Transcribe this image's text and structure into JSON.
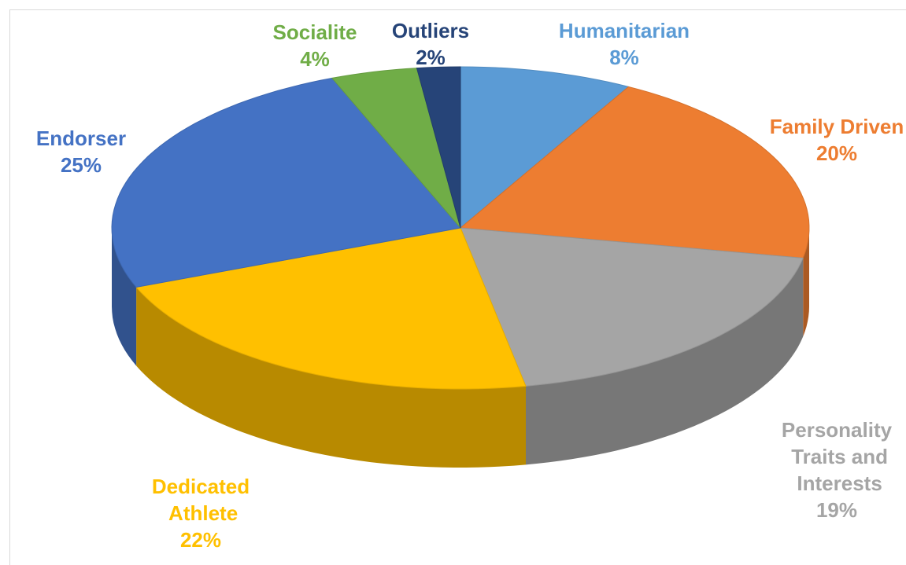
{
  "chart_data": {
    "type": "pie3d",
    "categories": [
      "Humanitarian",
      "Family Driven",
      "Personality Traits and Interests",
      "Dedicated Athlete",
      "Endorser",
      "Socialite",
      "Outliers"
    ],
    "values": [
      8,
      20,
      19,
      22,
      25,
      4,
      2
    ],
    "value_labels": [
      "8%",
      "20%",
      "19%",
      "22%",
      "25%",
      "4%",
      "2%"
    ],
    "colors": [
      "#5b9bd5",
      "#ed7d31",
      "#a5a5a5",
      "#ffc000",
      "#4472c4",
      "#70ad47",
      "#264478"
    ]
  }
}
